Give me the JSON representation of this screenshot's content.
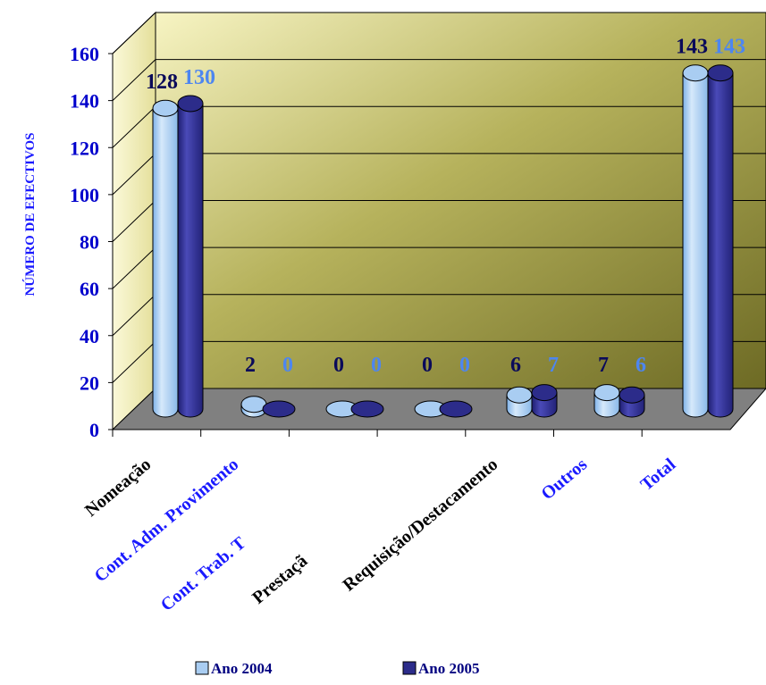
{
  "chart_data": {
    "type": "bar",
    "title": "",
    "xlabel": "",
    "ylabel": "NÚMERO DE EFECTIVOS",
    "ylim": [
      0,
      160
    ],
    "yticks": [
      "0",
      "20",
      "40",
      "60",
      "80",
      "100",
      "120",
      "140",
      "160"
    ],
    "grid": true,
    "legend_position": "bottom",
    "categories": [
      "Nomeação",
      "Cont. Adm. Provimento",
      "Cont. Trab. T",
      "Prestaçã",
      "Requisição/Destacamento",
      "Outros",
      "Total"
    ],
    "category_label_colors": [
      "#000000",
      "#1a1aff",
      "#1a1aff",
      "#000000",
      "#000000",
      "#1a1aff",
      "#1a1aff"
    ],
    "series": [
      {
        "name": "Ano 2004",
        "values": [
          128,
          2,
          0,
          0,
          6,
          7,
          143
        ],
        "labels": [
          "128",
          "2",
          "0",
          "0",
          "6",
          "7",
          "143"
        ],
        "color": "#a9cdf2",
        "label_color": "#0a0a5a"
      },
      {
        "name": "Ano 2005",
        "values": [
          130,
          0,
          0,
          0,
          7,
          6,
          143
        ],
        "labels": [
          "130",
          "0",
          "0",
          "0",
          "7",
          "6",
          "143"
        ],
        "color": "#2c2c8a",
        "label_color": "#4d86f0"
      }
    ],
    "colors": {
      "wall_light": "#f7f4c3",
      "wall_dark": "#6d6a24",
      "floor": "#808080",
      "axis_text": "#0000cc"
    }
  }
}
